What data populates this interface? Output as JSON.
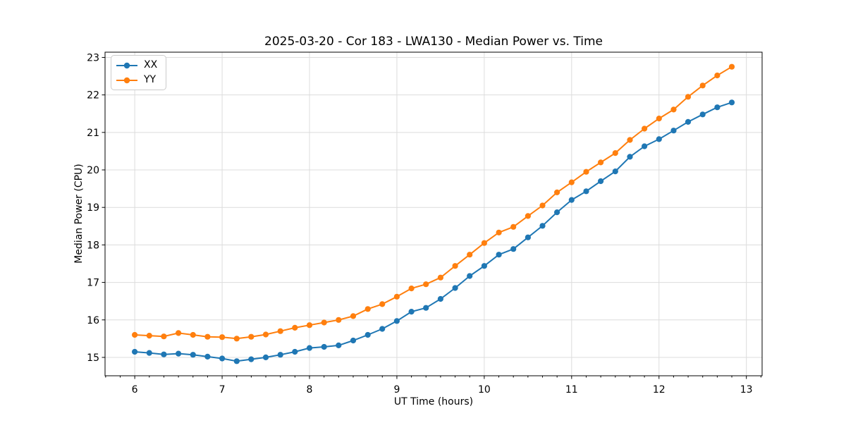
{
  "chart_data": {
    "type": "line",
    "title": "2025-03-20 - Cor 183 - LWA130 - Median Power vs. Time",
    "xlabel": "UT Time (hours)",
    "ylabel": "Median Power (CPU)",
    "xlim": [
      5.66,
      13.18
    ],
    "ylim": [
      14.51,
      23.14
    ],
    "x_major_ticks": [
      6,
      7,
      8,
      9,
      10,
      11,
      12,
      13
    ],
    "x_minor_step": 0.166667,
    "y_ticks": [
      15,
      16,
      17,
      18,
      19,
      20,
      21,
      22,
      23
    ],
    "grid": "major",
    "grid_color": "#dcdcdc",
    "legend_position": "upper left",
    "x": [
      6.0,
      6.167,
      6.333,
      6.5,
      6.667,
      6.833,
      7.0,
      7.167,
      7.333,
      7.5,
      7.667,
      7.833,
      8.0,
      8.167,
      8.333,
      8.5,
      8.667,
      8.833,
      9.0,
      9.167,
      9.333,
      9.5,
      9.667,
      9.833,
      10.0,
      10.167,
      10.333,
      10.5,
      10.667,
      10.833,
      11.0,
      11.167,
      11.333,
      11.5,
      11.667,
      11.833,
      12.0,
      12.167,
      12.333,
      12.5,
      12.667,
      12.833
    ],
    "series": [
      {
        "name": "XX",
        "color": "#1f77b4",
        "values": [
          15.15,
          15.12,
          15.08,
          15.1,
          15.07,
          15.02,
          14.97,
          14.9,
          14.95,
          15.0,
          15.07,
          15.15,
          15.25,
          15.28,
          15.32,
          15.45,
          15.6,
          15.76,
          15.97,
          16.22,
          16.32,
          16.56,
          16.85,
          17.17,
          17.44,
          17.74,
          17.89,
          18.2,
          18.51,
          18.87,
          19.2,
          19.43,
          19.7,
          19.96,
          20.35,
          20.63,
          20.82,
          21.05,
          21.28,
          21.48,
          21.67,
          21.8
        ]
      },
      {
        "name": "YY",
        "color": "#ff7f0e",
        "values": [
          15.6,
          15.58,
          15.56,
          15.65,
          15.6,
          15.55,
          15.54,
          15.5,
          15.55,
          15.61,
          15.7,
          15.79,
          15.86,
          15.93,
          16.0,
          16.1,
          16.29,
          16.42,
          16.62,
          16.84,
          16.95,
          17.13,
          17.44,
          17.74,
          18.05,
          18.33,
          18.48,
          18.77,
          19.05,
          19.4,
          19.67,
          19.95,
          20.2,
          20.45,
          20.8,
          21.1,
          21.37,
          21.61,
          21.95,
          22.25,
          22.52,
          22.75
        ]
      }
    ]
  }
}
